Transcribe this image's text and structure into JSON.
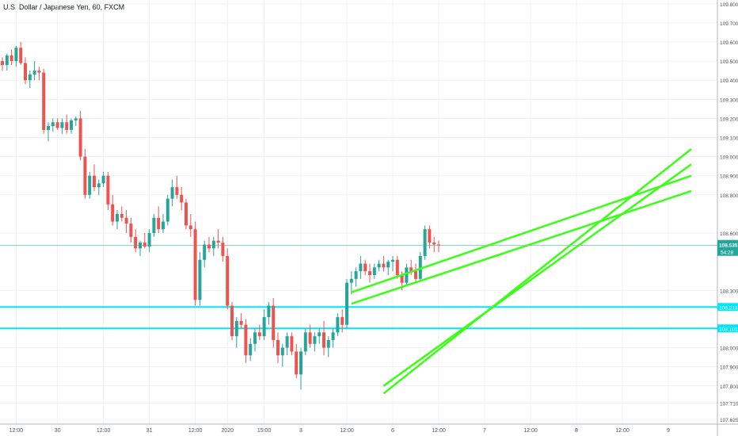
{
  "header": {
    "symbol_title": "U.S. Dollar / Japanese Yen, 60, FXCM"
  },
  "chart_data": {
    "type": "candlestick",
    "title": "U.S. Dollar / Japanese Yen, 60, FXCM",
    "ylim": [
      107.6,
      109.82
    ],
    "y_ticks": [
      "109.800",
      "109.700",
      "109.600",
      "109.500",
      "109.400",
      "109.300",
      "109.200",
      "109.100",
      "109.000",
      "108.900",
      "108.800",
      "108.600",
      "108.300",
      "108.000",
      "107.900",
      "107.800",
      "107.710",
      "107.625"
    ],
    "y_tick_values": [
      109.8,
      109.7,
      109.6,
      109.5,
      109.4,
      109.3,
      109.2,
      109.1,
      109.0,
      108.9,
      108.8,
      108.6,
      108.3,
      108.0,
      107.9,
      107.8,
      107.71,
      107.625
    ],
    "x_ticks": [
      {
        "label": "12:00",
        "index": 3
      },
      {
        "label": "30",
        "index": 12
      },
      {
        "label": "12:00",
        "index": 22
      },
      {
        "label": "31",
        "index": 32
      },
      {
        "label": "12:00",
        "index": 42
      },
      {
        "label": "2020",
        "index": 49
      },
      {
        "label": "15:00",
        "index": 57
      },
      {
        "label": "3",
        "index": 65
      },
      {
        "label": "12:00",
        "index": 75
      },
      {
        "label": "6",
        "index": 85
      },
      {
        "label": "12:00",
        "index": 95
      },
      {
        "label": "7",
        "index": 105
      },
      {
        "label": "12:00",
        "index": 115
      },
      {
        "label": "8",
        "index": 125
      },
      {
        "label": "12:00",
        "index": 135
      },
      {
        "label": "9",
        "index": 145
      }
    ],
    "grid": true,
    "current_price": {
      "label": "108.535",
      "countdown": "54:28",
      "value": 108.535,
      "color": "#26a69a"
    },
    "horizontal_lines": [
      {
        "label": "108.213",
        "value": 108.213,
        "color": "#00e5ff"
      },
      {
        "label": "108.101",
        "value": 108.101,
        "color": "#00e5ff"
      }
    ],
    "trend_lines": [
      {
        "x1": 76,
        "y1": 108.29,
        "x2": 150,
        "y2": 108.9,
        "color": "#39ff14"
      },
      {
        "x1": 76,
        "y1": 108.23,
        "x2": 150,
        "y2": 108.82,
        "color": "#39ff14"
      },
      {
        "x1": 83,
        "y1": 107.76,
        "x2": 150,
        "y2": 109.04,
        "color": "#39ff14"
      },
      {
        "x1": 83,
        "y1": 107.8,
        "x2": 150,
        "y2": 108.96,
        "color": "#39ff14"
      }
    ],
    "colors": {
      "up": "#26a69a",
      "down": "#ef5350"
    },
    "candles": [
      [
        109.5,
        109.52,
        109.45,
        109.48
      ],
      [
        109.48,
        109.54,
        109.45,
        109.53
      ],
      [
        109.53,
        109.56,
        109.48,
        109.5
      ],
      [
        109.5,
        109.58,
        109.47,
        109.57
      ],
      [
        109.57,
        109.6,
        109.48,
        109.49
      ],
      [
        109.49,
        109.52,
        109.38,
        109.4
      ],
      [
        109.4,
        109.45,
        109.36,
        109.43
      ],
      [
        109.43,
        109.5,
        109.4,
        109.45
      ],
      [
        109.45,
        109.47,
        109.4,
        109.44
      ],
      [
        109.44,
        109.46,
        109.12,
        109.14
      ],
      [
        109.14,
        109.18,
        109.08,
        109.16
      ],
      [
        109.16,
        109.2,
        109.13,
        109.18
      ],
      [
        109.18,
        109.2,
        109.14,
        109.15
      ],
      [
        109.15,
        109.2,
        109.12,
        109.18
      ],
      [
        109.18,
        109.22,
        109.12,
        109.14
      ],
      [
        109.14,
        109.2,
        109.12,
        109.19
      ],
      [
        109.19,
        109.21,
        109.16,
        109.2
      ],
      [
        109.2,
        109.24,
        108.98,
        109.0
      ],
      [
        109.0,
        109.04,
        108.78,
        108.8
      ],
      [
        108.8,
        108.92,
        108.78,
        108.9
      ],
      [
        108.9,
        108.96,
        108.82,
        108.84
      ],
      [
        108.84,
        108.88,
        108.8,
        108.86
      ],
      [
        108.86,
        108.92,
        108.84,
        108.9
      ],
      [
        108.9,
        108.92,
        108.72,
        108.75
      ],
      [
        108.75,
        108.8,
        108.64,
        108.66
      ],
      [
        108.66,
        108.72,
        108.62,
        108.7
      ],
      [
        108.7,
        108.74,
        108.66,
        108.68
      ],
      [
        108.68,
        108.72,
        108.6,
        108.65
      ],
      [
        108.65,
        108.68,
        108.55,
        108.58
      ],
      [
        108.58,
        108.62,
        108.5,
        108.52
      ],
      [
        108.52,
        108.56,
        108.48,
        108.55
      ],
      [
        108.55,
        108.6,
        108.52,
        108.53
      ],
      [
        108.53,
        108.62,
        108.5,
        108.6
      ],
      [
        108.6,
        108.7,
        108.58,
        108.68
      ],
      [
        108.68,
        108.74,
        108.6,
        108.62
      ],
      [
        108.62,
        108.7,
        108.6,
        108.66
      ],
      [
        108.66,
        108.8,
        108.64,
        108.78
      ],
      [
        108.78,
        108.88,
        108.74,
        108.84
      ],
      [
        108.84,
        108.9,
        108.78,
        108.8
      ],
      [
        108.8,
        108.84,
        108.72,
        108.76
      ],
      [
        108.76,
        108.78,
        108.62,
        108.64
      ],
      [
        108.64,
        108.7,
        108.58,
        108.62
      ],
      [
        108.62,
        108.66,
        108.22,
        108.25
      ],
      [
        108.25,
        108.5,
        108.22,
        108.46
      ],
      [
        108.46,
        108.56,
        108.42,
        108.54
      ],
      [
        108.54,
        108.58,
        108.5,
        108.52
      ],
      [
        108.52,
        108.58,
        108.48,
        108.56
      ],
      [
        108.56,
        108.62,
        108.52,
        108.55
      ],
      [
        108.55,
        108.58,
        108.45,
        108.48
      ],
      [
        108.48,
        108.52,
        108.2,
        108.22
      ],
      [
        108.22,
        108.24,
        108.04,
        108.06
      ],
      [
        108.06,
        108.16,
        108.0,
        108.14
      ],
      [
        108.14,
        108.18,
        108.1,
        108.12
      ],
      [
        108.12,
        108.15,
        107.92,
        107.96
      ],
      [
        107.96,
        108.05,
        107.93,
        108.02
      ],
      [
        108.02,
        108.1,
        107.98,
        108.08
      ],
      [
        108.08,
        108.12,
        108.04,
        108.06
      ],
      [
        108.06,
        108.2,
        108.04,
        108.16
      ],
      [
        108.16,
        108.24,
        108.12,
        108.22
      ],
      [
        108.22,
        108.26,
        108.0,
        108.04
      ],
      [
        108.04,
        108.08,
        107.92,
        107.96
      ],
      [
        107.96,
        108.02,
        107.9,
        108.0
      ],
      [
        108.0,
        108.08,
        107.96,
        108.06
      ],
      [
        108.06,
        108.08,
        107.96,
        107.98
      ],
      [
        107.98,
        108.02,
        107.84,
        107.86
      ],
      [
        107.86,
        108.0,
        107.78,
        107.98
      ],
      [
        107.98,
        108.1,
        107.96,
        108.08
      ],
      [
        108.08,
        108.12,
        108.0,
        108.02
      ],
      [
        108.02,
        108.08,
        107.98,
        108.06
      ],
      [
        108.06,
        108.1,
        108.02,
        108.08
      ],
      [
        108.08,
        108.14,
        107.96,
        108.0
      ],
      [
        108.0,
        108.06,
        107.95,
        108.04
      ],
      [
        108.04,
        108.1,
        108.0,
        108.08
      ],
      [
        108.08,
        108.18,
        108.06,
        108.16
      ],
      [
        108.16,
        108.2,
        108.08,
        108.12
      ],
      [
        108.12,
        108.36,
        108.1,
        108.34
      ],
      [
        108.34,
        108.4,
        108.28,
        108.36
      ],
      [
        108.36,
        108.42,
        108.32,
        108.4
      ],
      [
        108.4,
        108.48,
        108.36,
        108.44
      ],
      [
        108.44,
        108.46,
        108.38,
        108.4
      ],
      [
        108.4,
        108.44,
        108.34,
        108.38
      ],
      [
        108.38,
        108.44,
        108.36,
        108.42
      ],
      [
        108.42,
        108.46,
        108.4,
        108.44
      ],
      [
        108.44,
        108.48,
        108.4,
        108.42
      ],
      [
        108.42,
        108.46,
        108.38,
        108.45
      ],
      [
        108.45,
        108.48,
        108.4,
        108.46
      ],
      [
        108.46,
        108.48,
        108.36,
        108.38
      ],
      [
        108.38,
        108.4,
        108.3,
        108.34
      ],
      [
        108.34,
        108.44,
        108.32,
        108.42
      ],
      [
        108.42,
        108.46,
        108.38,
        108.4
      ],
      [
        108.4,
        108.44,
        108.34,
        108.36
      ],
      [
        108.36,
        108.5,
        108.35,
        108.48
      ],
      [
        108.48,
        108.64,
        108.46,
        108.62
      ],
      [
        108.62,
        108.64,
        108.52,
        108.55
      ],
      [
        108.55,
        108.58,
        108.5,
        108.54
      ],
      [
        108.54,
        108.56,
        108.5,
        108.535
      ]
    ]
  }
}
